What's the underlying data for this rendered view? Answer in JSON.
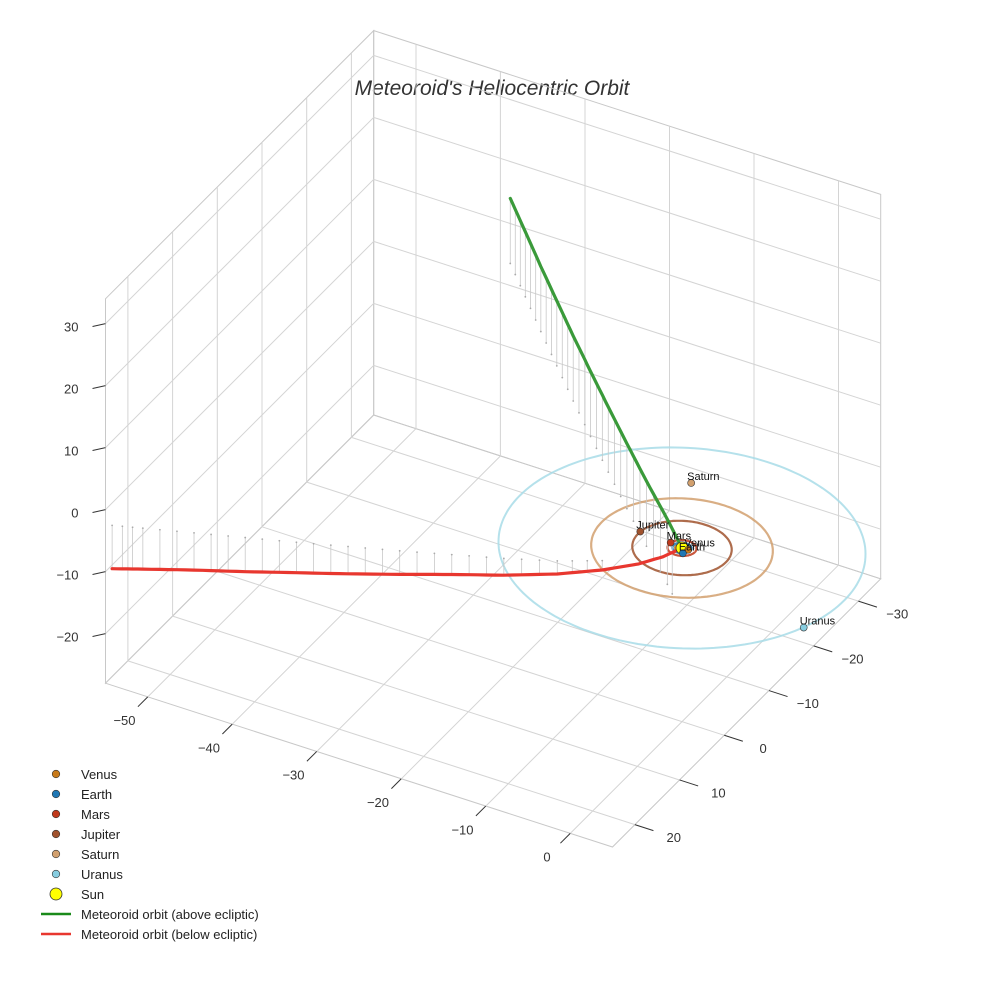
{
  "chart_data": {
    "type": "scatter",
    "projection": "3d",
    "title": "Meteoroid's Heliocentric Orbit",
    "xlabel": "",
    "ylabel": "",
    "zlabel": "",
    "grid": true,
    "legend_placement": "bottom-left",
    "axes": {
      "x": {
        "range": [
          -55,
          5
        ],
        "ticks": [
          -50,
          -40,
          -30,
          -20,
          -10,
          0
        ]
      },
      "y": {
        "range": [
          -35,
          25
        ],
        "ticks": [
          -30,
          -20,
          -10,
          0,
          10,
          20
        ]
      },
      "z": {
        "range": [
          -28,
          34
        ],
        "ticks": [
          -20,
          -10,
          0,
          10,
          20,
          30
        ]
      }
    },
    "sun": {
      "name": "Sun",
      "x": 0,
      "y": 0,
      "z": 0,
      "color": "#ffff00"
    },
    "planets": [
      {
        "name": "Venus",
        "a": 0.72,
        "x": 0.72,
        "y": -0.05,
        "z": 0,
        "color": "#c87a1a",
        "orbit_color": "#c87a1a"
      },
      {
        "name": "Earth",
        "a": 1.0,
        "x": 0.55,
        "y": 0.85,
        "z": 0,
        "color": "#1f77b4",
        "orbit_color": "#1f77b4"
      },
      {
        "name": "Mars",
        "a": 1.52,
        "x": -1.5,
        "y": -0.3,
        "z": 0,
        "color": "#c0391b",
        "orbit_color": "#c0391b"
      },
      {
        "name": "Jupiter",
        "a": 5.2,
        "x": -5.2,
        "y": -0.5,
        "z": 0,
        "color": "#a0522d",
        "orbit_color": "#a0522d"
      },
      {
        "name": "Saturn",
        "a": 9.5,
        "x": -5.0,
        "y": -11.5,
        "z": 0,
        "color": "#d2a06e",
        "orbit_color": "#d2a06e"
      },
      {
        "name": "Uranus",
        "a": 19.2,
        "x": 18.0,
        "y": 6.8,
        "z": 0,
        "color": "#87cde0",
        "orbit_color": "#a8dce8"
      }
    ],
    "series": [
      {
        "name": "Meteoroid orbit (above ecliptic)",
        "color": "#3a9a3a",
        "x": [
          0,
          -2,
          -5,
          -8,
          -11,
          -14,
          -17,
          -20,
          -23,
          -26,
          -29
        ],
        "y": [
          0,
          -0.5,
          -1.5,
          -2.8,
          -4.3,
          -6.0,
          -7.8,
          -9.8,
          -11.9,
          -14.1,
          -16.4
        ],
        "z": [
          0,
          3.4,
          7.5,
          11.3,
          14.8,
          18.0,
          21.1,
          24.0,
          26.7,
          29.4,
          31.8
        ]
      },
      {
        "name": "Meteoroid orbit (below ecliptic)",
        "color": "#e8372f",
        "x": [
          0,
          -1.2,
          -3,
          -6,
          -10,
          -15,
          -20,
          -25,
          -30,
          -35,
          -40,
          -45,
          -50,
          -53
        ],
        "y": [
          0,
          2.0,
          4.0,
          6.5,
          9.0,
          11.5,
          13.7,
          15.9,
          18.0,
          20.1,
          22.1,
          24.1,
          26.1,
          27.3
        ],
        "z": [
          0,
          -0.5,
          -1.0,
          -1.5,
          -2.1,
          -2.7,
          -3.2,
          -3.8,
          -4.4,
          -4.9,
          -5.5,
          -6.0,
          -6.6,
          -7.0
        ]
      }
    ]
  },
  "legend": {
    "items": [
      {
        "label": "Venus",
        "kind": "dot",
        "color": "#c87a1a"
      },
      {
        "label": "Earth",
        "kind": "dot",
        "color": "#1f77b4"
      },
      {
        "label": "Mars",
        "kind": "dot",
        "color": "#c0391b"
      },
      {
        "label": "Jupiter",
        "kind": "dot",
        "color": "#a0522d"
      },
      {
        "label": "Saturn",
        "kind": "dot",
        "color": "#d2a06e"
      },
      {
        "label": "Uranus",
        "kind": "dot",
        "color": "#87cde0"
      },
      {
        "label": "Sun",
        "kind": "sun",
        "color": "#ffff00"
      },
      {
        "label": "Meteoroid orbit (above ecliptic)",
        "kind": "line",
        "color": "#1a8a1a"
      },
      {
        "label": "Meteoroid orbit (below ecliptic)",
        "kind": "line",
        "color": "#e8372f"
      }
    ]
  }
}
